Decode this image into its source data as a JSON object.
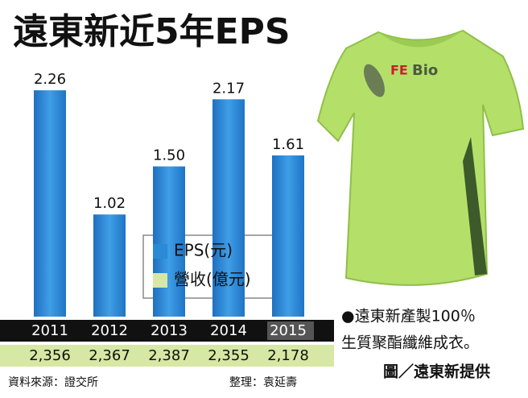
{
  "chart_data": {
    "type": "bar",
    "title": "遠東新近5年EPS",
    "categories": [
      "2011",
      "2012",
      "2013",
      "2014",
      "2015"
    ],
    "series": [
      {
        "name": "EPS(元)",
        "color": "#2b8ad6",
        "values": [
          2.26,
          1.02,
          1.5,
          2.17,
          1.61
        ],
        "value_labels": [
          "2.26",
          "1.02",
          "1.50",
          "2.17",
          "1.61"
        ]
      },
      {
        "name": "營收(億元)",
        "color": "#d6e8a4",
        "values": [
          2356,
          2367,
          2387,
          2355,
          2178
        ],
        "value_labels": [
          "2,356",
          "2,367",
          "2,387",
          "2,355",
          "2,178"
        ]
      }
    ],
    "annotations": [
      "●遠東新產製100％",
      "生質聚酯纖維成衣。",
      "圖／遠東新提供"
    ],
    "source": "資料來源：證交所",
    "editor": "整理：袁延壽",
    "product_label": "Bio"
  }
}
